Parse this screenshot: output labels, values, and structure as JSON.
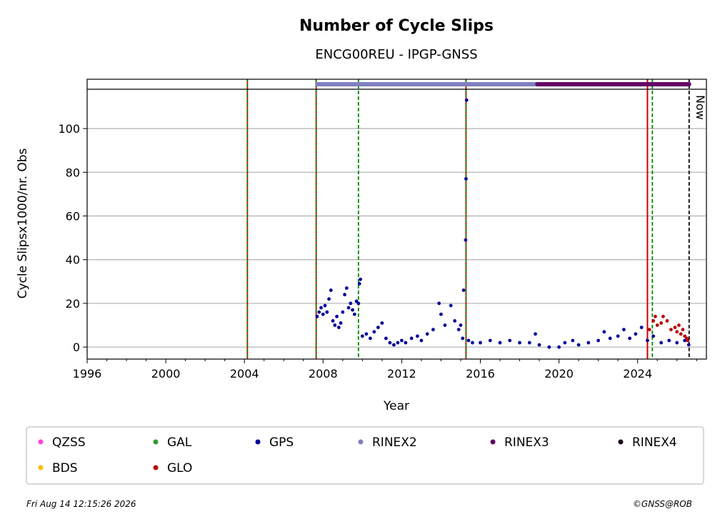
{
  "chart_data": {
    "type": "scatter",
    "title": "Number of Cycle Slips",
    "subtitle": "ENCG00REU - IPGP-GNSS",
    "xlabel": "Year",
    "ylabel": "Cycle Slipsx1000/nr. Obs",
    "xlim": [
      1996,
      2027.5
    ],
    "ylim": [
      -5.5,
      118
    ],
    "x_ticks": [
      1996,
      2000,
      2004,
      2008,
      2012,
      2016,
      2020,
      2024
    ],
    "y_ticks": [
      0,
      20,
      40,
      60,
      80,
      100
    ],
    "grid": "horizontal",
    "legend_placement": "below",
    "legend": [
      {
        "name": "QZSS",
        "color": "#ff44dd"
      },
      {
        "name": "GAL",
        "color": "#339933"
      },
      {
        "name": "GPS",
        "color": "#000099"
      },
      {
        "name": "RINEX2",
        "color": "#8080c0"
      },
      {
        "name": "RINEX3",
        "color": "#660066"
      },
      {
        "name": "RINEX4",
        "color": "#1a0a1a"
      },
      {
        "name": "BDS",
        "color": "#ffbb00"
      },
      {
        "name": "GLO",
        "color": "#bb0000"
      }
    ],
    "series": [
      {
        "name": "GPS",
        "color": "#000099",
        "points": [
          [
            2007.7,
            14
          ],
          [
            2007.8,
            16
          ],
          [
            2007.9,
            18
          ],
          [
            2008.0,
            15
          ],
          [
            2008.1,
            19
          ],
          [
            2008.2,
            16
          ],
          [
            2008.3,
            22
          ],
          [
            2008.4,
            26
          ],
          [
            2008.5,
            12
          ],
          [
            2008.6,
            10
          ],
          [
            2008.7,
            14
          ],
          [
            2008.8,
            9
          ],
          [
            2008.9,
            11
          ],
          [
            2009.0,
            16
          ],
          [
            2009.1,
            24
          ],
          [
            2009.2,
            27
          ],
          [
            2009.3,
            18
          ],
          [
            2009.4,
            20
          ],
          [
            2009.5,
            17
          ],
          [
            2009.6,
            15
          ],
          [
            2009.7,
            21
          ],
          [
            2009.8,
            20
          ],
          [
            2009.85,
            29
          ],
          [
            2009.9,
            31
          ],
          [
            2010.0,
            5
          ],
          [
            2010.2,
            6
          ],
          [
            2010.4,
            4
          ],
          [
            2010.6,
            7
          ],
          [
            2010.8,
            9
          ],
          [
            2011.0,
            11
          ],
          [
            2011.2,
            4
          ],
          [
            2011.4,
            2
          ],
          [
            2011.6,
            1
          ],
          [
            2011.8,
            2
          ],
          [
            2012.0,
            3
          ],
          [
            2012.2,
            2
          ],
          [
            2012.5,
            4
          ],
          [
            2012.8,
            5
          ],
          [
            2013.0,
            3
          ],
          [
            2013.3,
            6
          ],
          [
            2013.6,
            8
          ],
          [
            2013.9,
            20
          ],
          [
            2014.0,
            15
          ],
          [
            2014.2,
            10
          ],
          [
            2014.5,
            19
          ],
          [
            2014.7,
            12
          ],
          [
            2014.9,
            8
          ],
          [
            2015.0,
            10
          ],
          [
            2015.1,
            4
          ],
          [
            2015.15,
            26
          ],
          [
            2015.25,
            49
          ],
          [
            2015.27,
            77
          ],
          [
            2015.3,
            113
          ],
          [
            2015.4,
            3
          ],
          [
            2015.6,
            2
          ],
          [
            2016.0,
            2
          ],
          [
            2016.5,
            3
          ],
          [
            2017.0,
            2
          ],
          [
            2017.5,
            3
          ],
          [
            2018.0,
            2
          ],
          [
            2018.5,
            2
          ],
          [
            2018.8,
            6
          ],
          [
            2019.0,
            1
          ],
          [
            2019.5,
            0
          ],
          [
            2020.0,
            0
          ],
          [
            2020.3,
            2
          ],
          [
            2020.7,
            3
          ],
          [
            2021.0,
            1
          ],
          [
            2021.5,
            2
          ],
          [
            2022.0,
            3
          ],
          [
            2022.3,
            7
          ],
          [
            2022.6,
            4
          ],
          [
            2023.0,
            5
          ],
          [
            2023.3,
            8
          ],
          [
            2023.6,
            4
          ],
          [
            2023.9,
            6
          ],
          [
            2024.2,
            9
          ],
          [
            2024.5,
            3
          ],
          [
            2024.8,
            5
          ],
          [
            2025.2,
            2
          ],
          [
            2025.6,
            3
          ],
          [
            2026.0,
            2
          ],
          [
            2026.4,
            3
          ],
          [
            2026.6,
            1
          ]
        ]
      },
      {
        "name": "GLO",
        "color": "#bb0000",
        "points": [
          [
            2024.6,
            8
          ],
          [
            2024.8,
            12
          ],
          [
            2024.9,
            14
          ],
          [
            2025.0,
            10
          ],
          [
            2025.2,
            11
          ],
          [
            2025.3,
            14
          ],
          [
            2025.5,
            12
          ],
          [
            2025.7,
            8
          ],
          [
            2025.9,
            9
          ],
          [
            2026.0,
            7
          ],
          [
            2026.1,
            10
          ],
          [
            2026.2,
            6
          ],
          [
            2026.3,
            8
          ],
          [
            2026.4,
            5
          ],
          [
            2026.5,
            4
          ],
          [
            2026.55,
            3
          ]
        ]
      }
    ],
    "rinex_bars": [
      {
        "name": "RINEX2",
        "color": "#8080c0",
        "start": 2007.7,
        "end": 2018.9
      },
      {
        "name": "RINEX3",
        "color": "#660066",
        "start": 2018.9,
        "end": 2026.62
      }
    ],
    "vertical_lines": [
      {
        "x": 2004.15,
        "color": "#cc0000",
        "style": "dashed-red-green"
      },
      {
        "x": 2007.65,
        "color": "#cc0000",
        "style": "dashed-red-green"
      },
      {
        "x": 2009.8,
        "color": "#008800",
        "style": "dashed"
      },
      {
        "x": 2015.27,
        "color": "#cc0000",
        "style": "dashed-red-green"
      },
      {
        "x": 2024.5,
        "color": "#cc0000",
        "style": "solid"
      },
      {
        "x": 2024.75,
        "color": "#008800",
        "style": "dashed"
      },
      {
        "x": 2026.62,
        "color": "#000000",
        "style": "dashed",
        "label": "Now"
      }
    ]
  },
  "footer": {
    "timestamp": "Fri Aug 14 12:15:26 2026",
    "copyright": "©GNSS@ROB"
  }
}
